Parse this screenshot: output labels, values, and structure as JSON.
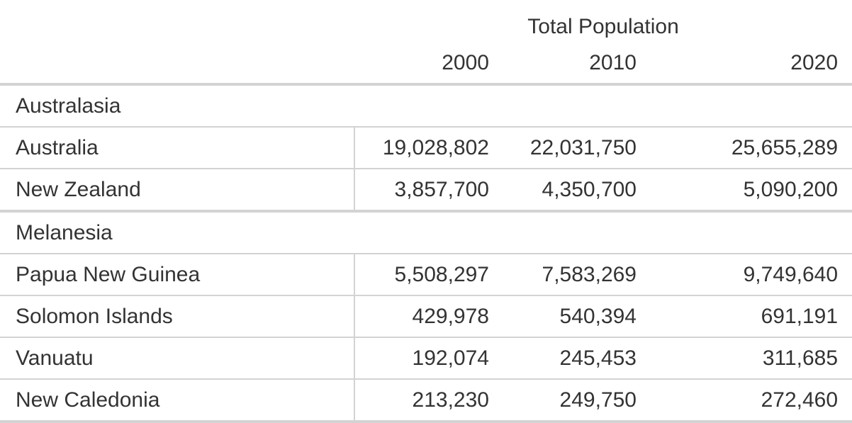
{
  "table": {
    "spanner": "Total Population",
    "columns": [
      "2000",
      "2010",
      "2020"
    ],
    "groups": [
      {
        "name": "Australasia",
        "rows": [
          {
            "label": "Australia",
            "values": [
              "19,028,802",
              "22,031,750",
              "25,655,289"
            ]
          },
          {
            "label": "New Zealand",
            "values": [
              "3,857,700",
              "4,350,700",
              "5,090,200"
            ]
          }
        ]
      },
      {
        "name": "Melanesia",
        "rows": [
          {
            "label": "Papua New Guinea",
            "values": [
              "5,508,297",
              "7,583,269",
              "9,749,640"
            ]
          },
          {
            "label": "Solomon Islands",
            "values": [
              "429,978",
              "540,394",
              "691,191"
            ]
          },
          {
            "label": "Vanuatu",
            "values": [
              "192,074",
              "245,453",
              "311,685"
            ]
          },
          {
            "label": "New Caledonia",
            "values": [
              "213,230",
              "249,750",
              "272,460"
            ]
          }
        ]
      }
    ]
  }
}
